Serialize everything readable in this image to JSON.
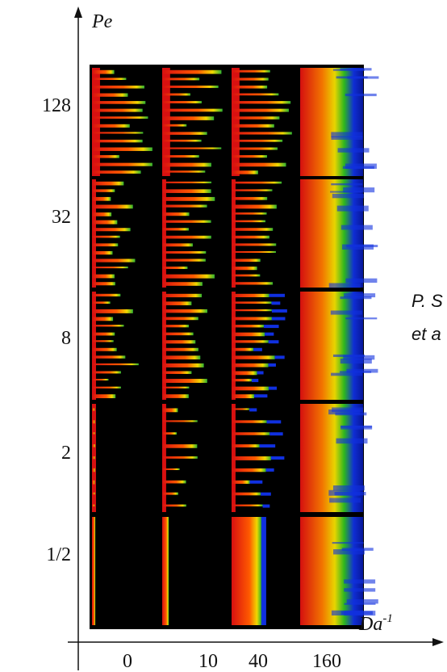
{
  "axes": {
    "y_label": "Pe",
    "x_label": "Da",
    "x_label_sup": "-1"
  },
  "rows": [
    "128",
    "32",
    "8",
    "2",
    "1/2"
  ],
  "columns": [
    "0",
    "10",
    "40",
    "160"
  ],
  "citation": [
    "P. S",
    "et a"
  ]
}
